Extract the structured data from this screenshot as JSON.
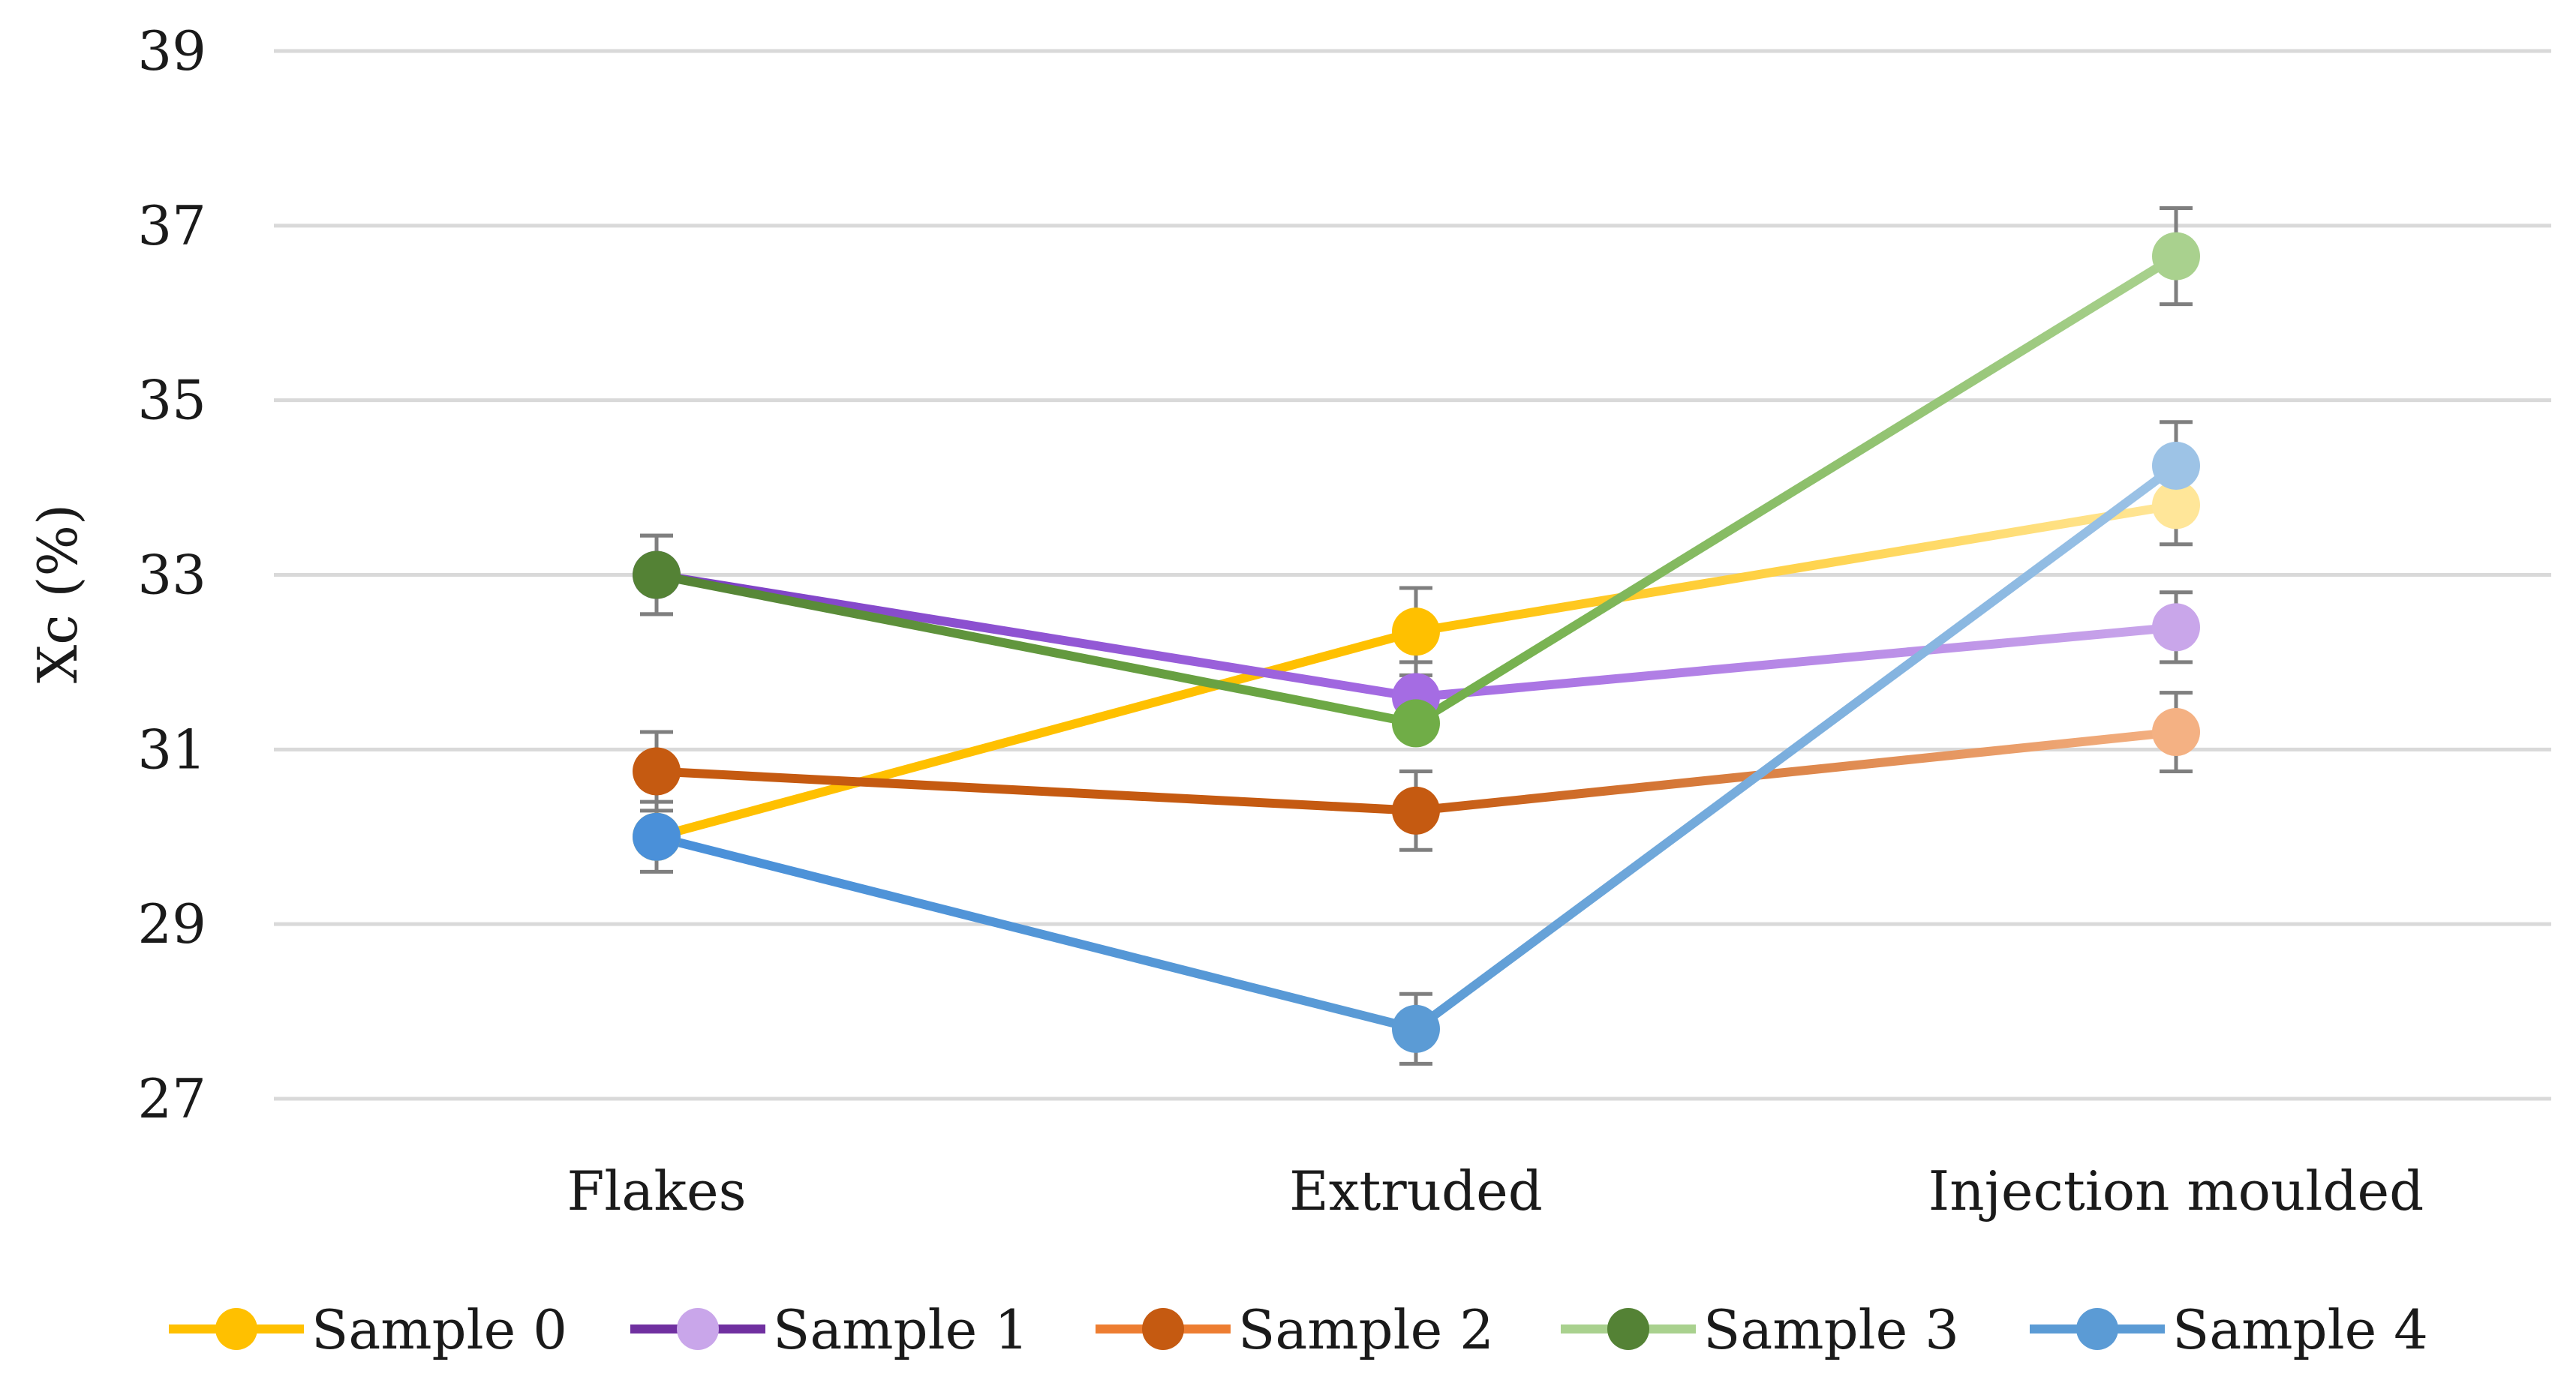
{
  "chart_data": {
    "type": "line",
    "title": "",
    "xlabel": "",
    "ylabel": "Xc (%)",
    "ylim": [
      27,
      39
    ],
    "yticks": [
      27,
      29,
      31,
      33,
      35,
      37,
      39
    ],
    "grid": true,
    "legend": "bottom",
    "categories": [
      "Flakes",
      "Extruded",
      "Injection moulded"
    ],
    "series": [
      {
        "name": "Sample 0",
        "values": [
          30.0,
          32.35,
          33.8
        ],
        "errors": [
          0.0,
          0.5,
          0.45
        ],
        "colors": [
          "#FFC000",
          "#FFC000",
          "#FFE699"
        ]
      },
      {
        "name": "Sample 1",
        "values": [
          33.0,
          31.6,
          32.4
        ],
        "errors": [
          0.45,
          0.4,
          0.4
        ],
        "colors": [
          "#7A3DC2",
          "#A56CE3",
          "#C9A6EA"
        ]
      },
      {
        "name": "Sample 2",
        "values": [
          30.75,
          30.3,
          31.2
        ],
        "errors": [
          0.45,
          0.45,
          0.45
        ],
        "colors": [
          "#C55A11",
          "#C55A11",
          "#F4B183"
        ]
      },
      {
        "name": "Sample 3",
        "values": [
          33.0,
          31.3,
          36.65
        ],
        "errors": [
          0.45,
          0.0,
          0.55
        ],
        "colors": [
          "#548235",
          "#70AD47",
          "#A9D18E"
        ]
      },
      {
        "name": "Sample 4",
        "values": [
          30.0,
          27.8,
          34.25
        ],
        "errors": [
          0.4,
          0.4,
          0.5
        ],
        "colors": [
          "#4A90D9",
          "#5B9BD5",
          "#9DC3E6"
        ]
      }
    ],
    "legend_colors": [
      {
        "line": "#FFC000",
        "marker": "#FFC000"
      },
      {
        "line": "#7030A0",
        "marker": "#C9A6EA"
      },
      {
        "line": "#ED7D31",
        "marker": "#C55A11"
      },
      {
        "line": "#A9D18E",
        "marker": "#548235"
      },
      {
        "line": "#5B9BD5",
        "marker": "#5B9BD5"
      }
    ]
  }
}
